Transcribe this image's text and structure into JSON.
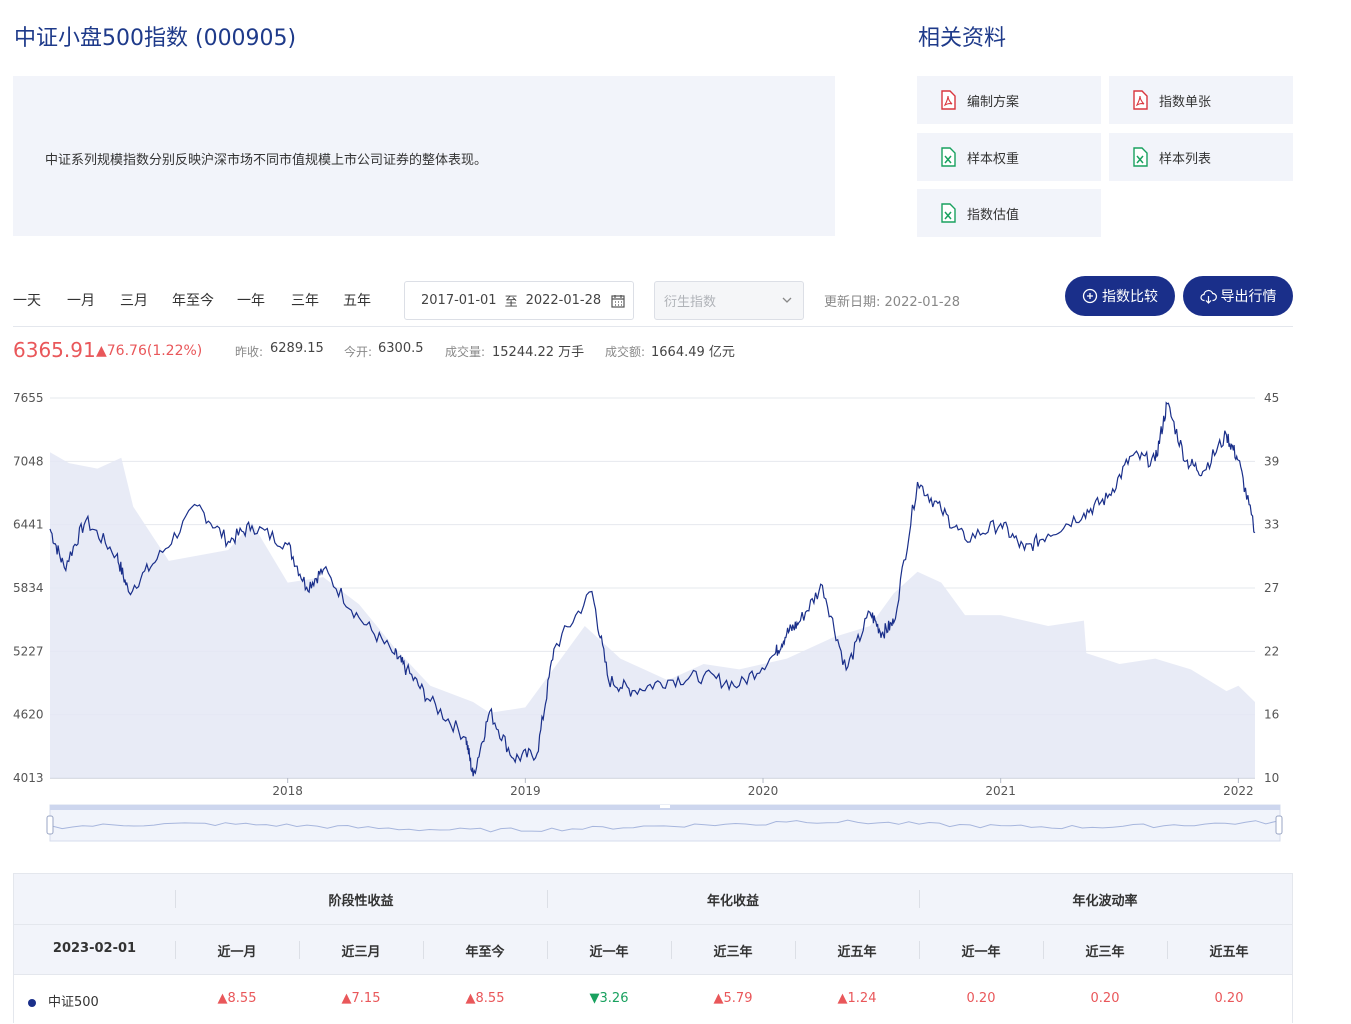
{
  "header": {
    "title": "中证小盘500指数 (000905)",
    "related_title": "相关资料",
    "description": "中证系列规模指数分别反映沪深市场不同市值规模上市公司证券的整体表现。"
  },
  "resources": [
    {
      "label": "编制方案",
      "icon": "pdf-icon"
    },
    {
      "label": "指数单张",
      "icon": "pdf-icon"
    },
    {
      "label": "样本权重",
      "icon": "excel-icon"
    },
    {
      "label": "样本列表",
      "icon": "excel-icon"
    },
    {
      "label": "指数估值",
      "icon": "excel-icon"
    }
  ],
  "periods": [
    "一天",
    "一月",
    "三月",
    "年至今",
    "一年",
    "三年",
    "五年"
  ],
  "date_range": {
    "start": "2017-01-01",
    "sep": "至",
    "end": "2022-01-28"
  },
  "derivative_select": {
    "placeholder": "衍生指数"
  },
  "update": {
    "label": "更新日期:",
    "value": "2022-01-28"
  },
  "buttons": {
    "compare": "指数比较",
    "export": "导出行情"
  },
  "quote": {
    "price": "6365.91",
    "change": "▲76.76",
    "change_pct": "(1.22%)",
    "stats": [
      {
        "label": "昨收:",
        "value": "6289.15"
      },
      {
        "label": "今开:",
        "value": "6300.5"
      },
      {
        "label": "成交量:",
        "value": "15244.22 万手"
      },
      {
        "label": "成交额:",
        "value": "1664.49 亿元"
      }
    ]
  },
  "colors": {
    "accent": "#1a2f8a",
    "up": "#e9575a",
    "down": "#19a15f",
    "area": "#e4e8f4"
  },
  "chart_data": {
    "type": "line",
    "x_ticks": [
      "2018",
      "2019",
      "2020",
      "2021",
      "2022"
    ],
    "y_left_ticks": [
      "7655",
      "7048",
      "6441",
      "5834",
      "5227",
      "4620",
      "4013"
    ],
    "y_right_ticks": [
      "45",
      "39",
      "33",
      "27",
      "22",
      "16",
      "10"
    ],
    "ylim_left": [
      4013,
      7655
    ],
    "ylim_right": [
      10,
      45
    ],
    "series": [
      {
        "x": [
          2017.0,
          2017.06,
          2017.15,
          2017.28,
          2017.33,
          2017.45,
          2017.62,
          2017.75,
          2017.85,
          2018.0,
          2018.08,
          2018.15,
          2018.3,
          2018.45,
          2018.5,
          2018.6,
          2018.75,
          2018.78,
          2018.85,
          2018.95,
          2019.05,
          2019.12,
          2019.28,
          2019.35,
          2019.45,
          2019.6,
          2019.75,
          2019.9,
          2020.05,
          2020.1,
          2020.15,
          2020.25,
          2020.35,
          2020.45,
          2020.5,
          2020.55,
          2020.65,
          2020.75,
          2020.85,
          2021.0,
          2021.1,
          2021.2,
          2021.35,
          2021.45,
          2021.55,
          2021.65,
          2021.7,
          2021.78,
          2021.85,
          2021.95,
          2022.0,
          2022.07
        ],
        "values": [
          6400,
          6030,
          6480,
          6150,
          5800,
          6110,
          6620,
          6280,
          6430,
          6250,
          5840,
          6010,
          5550,
          5200,
          5050,
          4750,
          4400,
          4030,
          4650,
          4200,
          4250,
          5250,
          5800,
          4950,
          4850,
          4950,
          4990,
          4900,
          5200,
          5400,
          5500,
          5860,
          5050,
          5600,
          5400,
          5500,
          6850,
          6580,
          6300,
          6450,
          6200,
          6350,
          6550,
          6700,
          7100,
          7050,
          7600,
          7050,
          6950,
          7300,
          7060,
          6365
        ]
      }
    ]
  },
  "table": {
    "groups": [
      "阶段性收益",
      "年化收益",
      "年化波动率"
    ],
    "date": "2023-02-01",
    "columns": [
      "近一月",
      "近三月",
      "年至今",
      "近一年",
      "近三年",
      "近五年",
      "近一年",
      "近三年",
      "近五年"
    ],
    "rows": [
      {
        "name": "中证500",
        "cells": [
          {
            "v": "▲8.55",
            "t": "up"
          },
          {
            "v": "▲7.15",
            "t": "up"
          },
          {
            "v": "▲8.55",
            "t": "up"
          },
          {
            "v": "▼3.26",
            "t": "down"
          },
          {
            "v": "▲5.79",
            "t": "up"
          },
          {
            "v": "▲1.24",
            "t": "up"
          },
          {
            "v": "0.20",
            "t": "up"
          },
          {
            "v": "0.20",
            "t": "up"
          },
          {
            "v": "0.20",
            "t": "up"
          }
        ]
      }
    ]
  }
}
